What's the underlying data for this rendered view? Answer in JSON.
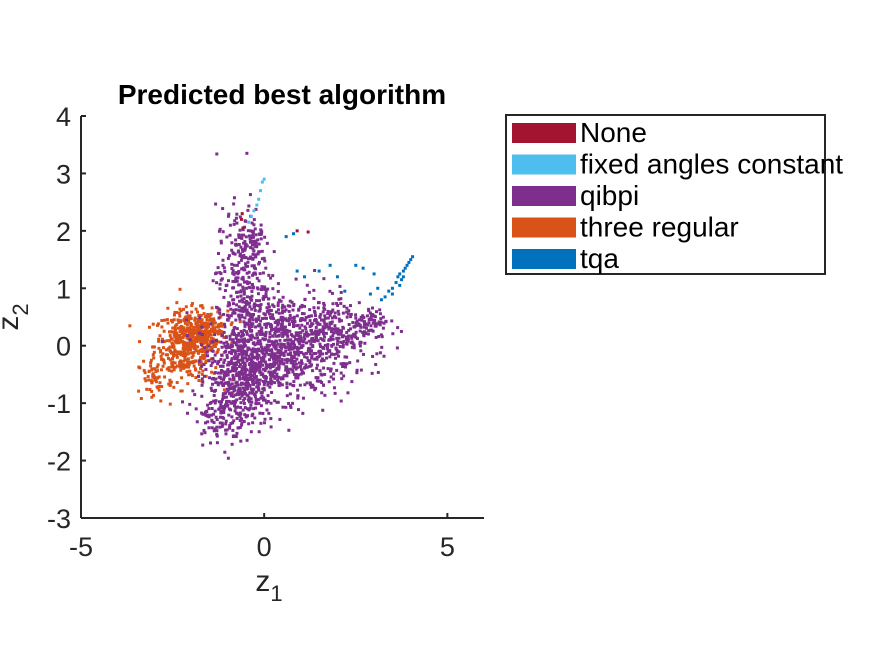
{
  "chart_data": {
    "type": "scatter",
    "title": "Predicted best algorithm",
    "xlabel": "z",
    "xlabel_sub": "1",
    "ylabel": "z",
    "ylabel_sub": "2",
    "xlim": [
      -5,
      6
    ],
    "ylim": [
      -3,
      4
    ],
    "xticks": [
      -5,
      0,
      5
    ],
    "xtick_labels": [
      "-5",
      "0",
      "5"
    ],
    "yticks": [
      -3,
      -2,
      -1,
      0,
      1,
      2,
      3,
      4
    ],
    "ytick_labels": [
      "-3",
      "-2",
      "-1",
      "0",
      "1",
      "2",
      "3",
      "4"
    ],
    "grid": false,
    "legend_position": "outside-top-right",
    "series": [
      {
        "name": "None",
        "color": "#A2142F",
        "points": [
          [
            -0.6,
            2.3
          ],
          [
            -0.62,
            2.2
          ],
          [
            -0.58,
            2.05
          ],
          [
            0.9,
            2.0
          ],
          [
            1.2,
            1.98
          ]
        ]
      },
      {
        "name": "fixed angles constant",
        "color": "#4DBEEE",
        "points": [
          [
            -0.05,
            2.85
          ],
          [
            -0.1,
            2.7
          ],
          [
            -0.15,
            2.55
          ],
          [
            -0.2,
            2.45
          ],
          [
            -0.28,
            2.35
          ],
          [
            -0.35,
            2.25
          ],
          [
            -0.42,
            2.15
          ],
          [
            0.0,
            2.9
          ]
        ]
      },
      {
        "name": "qibpi",
        "color": "#7E2F8E",
        "clusters": [
          {
            "cx": 0.6,
            "cy": 0.0,
            "sx": 0.9,
            "sy": 0.45,
            "n": 900
          },
          {
            "cx": -0.6,
            "cy": -0.5,
            "sx": 0.45,
            "sy": 0.45,
            "n": 500
          },
          {
            "cx": -0.6,
            "cy": 1.2,
            "sx": 0.35,
            "sy": 0.6,
            "n": 300
          },
          {
            "cx": 2.2,
            "cy": 0.3,
            "sx": 0.6,
            "sy": 0.2,
            "n": 150
          },
          {
            "cx": -1.2,
            "cy": -1.2,
            "sx": 0.35,
            "sy": 0.25,
            "n": 100
          },
          {
            "cx": -0.3,
            "cy": 1.9,
            "sx": 0.15,
            "sy": 0.2,
            "n": 40
          },
          {
            "cx": 3.0,
            "cy": 0.45,
            "sx": 0.2,
            "sy": 0.1,
            "n": 40
          }
        ]
      },
      {
        "name": "three regular",
        "color": "#D95319",
        "clusters": [
          {
            "cx": -2.1,
            "cy": 0.0,
            "sx": 0.45,
            "sy": 0.3,
            "n": 450
          },
          {
            "cx": -1.6,
            "cy": 0.3,
            "sx": 0.3,
            "sy": 0.15,
            "n": 150
          },
          {
            "cx": -3.0,
            "cy": -0.6,
            "sx": 0.25,
            "sy": 0.2,
            "n": 50
          }
        ]
      },
      {
        "name": "tqa",
        "color": "#0072BD",
        "points": [
          [
            0.6,
            1.9
          ],
          [
            0.8,
            1.95
          ],
          [
            0.9,
            1.3
          ],
          [
            1.1,
            1.2
          ],
          [
            1.5,
            1.3
          ],
          [
            1.8,
            1.4
          ],
          [
            2.0,
            1.2
          ],
          [
            2.2,
            0.95
          ],
          [
            2.5,
            1.4
          ],
          [
            2.7,
            1.35
          ],
          [
            3.0,
            1.25
          ],
          [
            3.1,
            1.0
          ],
          [
            3.3,
            0.85
          ],
          [
            3.4,
            0.95
          ],
          [
            3.5,
            0.9
          ],
          [
            3.6,
            1.1
          ],
          [
            3.65,
            1.2
          ],
          [
            3.7,
            1.25
          ],
          [
            3.75,
            1.15
          ],
          [
            3.8,
            1.3
          ],
          [
            3.85,
            1.35
          ],
          [
            3.9,
            1.4
          ],
          [
            3.95,
            1.45
          ],
          [
            4.0,
            1.5
          ],
          [
            4.05,
            1.55
          ],
          [
            3.7,
            1.05
          ],
          [
            3.5,
            1.0
          ],
          [
            2.9,
            0.9
          ],
          [
            3.2,
            0.8
          ],
          [
            3.8,
            1.2
          ]
        ]
      }
    ]
  }
}
